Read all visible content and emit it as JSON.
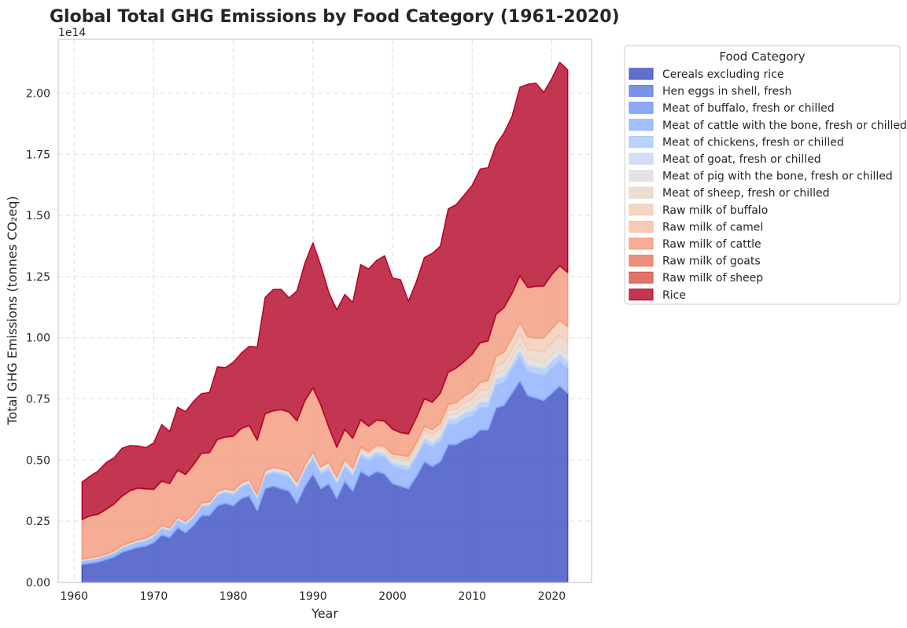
{
  "chart_data": {
    "type": "area",
    "stacked": true,
    "title": "Global Total GHG Emissions by Food Category (1961-2020)",
    "xlabel": "Year",
    "ylabel": "Total GHG Emissions (tonnes CO₂eq)",
    "y_offset_label": "1e14",
    "xlim": [
      1958,
      2025
    ],
    "ylim": [
      0,
      2.22
    ],
    "xticks": [
      1960,
      1970,
      1980,
      1990,
      2000,
      2010,
      2020
    ],
    "yticks": [
      0,
      0.25,
      0.5,
      0.75,
      1.0,
      1.25,
      1.5,
      1.75,
      2.0
    ],
    "ytick_labels": [
      "0.00",
      "0.25",
      "0.50",
      "0.75",
      "1.00",
      "1.25",
      "1.50",
      "1.75",
      "2.00"
    ],
    "grid": true,
    "legend_title": "Food Category",
    "legend_position": "outside-right-top",
    "x": [
      1961,
      1962,
      1963,
      1964,
      1965,
      1966,
      1967,
      1968,
      1969,
      1970,
      1971,
      1972,
      1973,
      1974,
      1975,
      1976,
      1977,
      1978,
      1979,
      1980,
      1981,
      1982,
      1983,
      1984,
      1985,
      1986,
      1987,
      1988,
      1989,
      1990,
      1991,
      1992,
      1993,
      1994,
      1995,
      1996,
      1997,
      1998,
      1999,
      2000,
      2001,
      2002,
      2003,
      2004,
      2005,
      2006,
      2007,
      2008,
      2009,
      2010,
      2011,
      2012,
      2013,
      2014,
      2015,
      2016,
      2017,
      2018,
      2019,
      2020,
      2021,
      2022
    ],
    "series": [
      {
        "name": "Cereals excluding rice",
        "color": "#3b4cc0",
        "values": [
          0.07,
          0.075,
          0.08,
          0.09,
          0.1,
          0.12,
          0.13,
          0.14,
          0.145,
          0.16,
          0.19,
          0.18,
          0.22,
          0.2,
          0.23,
          0.27,
          0.27,
          0.31,
          0.32,
          0.31,
          0.34,
          0.35,
          0.29,
          0.38,
          0.39,
          0.38,
          0.37,
          0.32,
          0.39,
          0.44,
          0.38,
          0.4,
          0.34,
          0.41,
          0.37,
          0.45,
          0.43,
          0.45,
          0.44,
          0.4,
          0.39,
          0.38,
          0.43,
          0.49,
          0.47,
          0.49,
          0.56,
          0.56,
          0.58,
          0.59,
          0.62,
          0.62,
          0.71,
          0.72,
          0.77,
          0.82,
          0.76,
          0.75,
          0.74,
          0.77,
          0.8,
          0.77
        ]
      },
      {
        "name": "Hen eggs in shell, fresh",
        "color": "#5977e3",
        "values": [
          0.003,
          0.003,
          0.003,
          0.003,
          0.003,
          0.003,
          0.003,
          0.003,
          0.003,
          0.003,
          0.003,
          0.003,
          0.003,
          0.003,
          0.003,
          0.003,
          0.003,
          0.003,
          0.003,
          0.003,
          0.003,
          0.003,
          0.003,
          0.003,
          0.003,
          0.003,
          0.003,
          0.003,
          0.003,
          0.003,
          0.003,
          0.003,
          0.003,
          0.003,
          0.003,
          0.003,
          0.003,
          0.003,
          0.003,
          0.003,
          0.003,
          0.003,
          0.003,
          0.003,
          0.003,
          0.003,
          0.003,
          0.003,
          0.003,
          0.003,
          0.003,
          0.003,
          0.003,
          0.003,
          0.003,
          0.003,
          0.003,
          0.003,
          0.003,
          0.003,
          0.003,
          0.003
        ]
      },
      {
        "name": "Meat of buffalo, fresh or chilled",
        "color": "#6f92f3",
        "values": [
          0.002,
          0.002,
          0.002,
          0.002,
          0.002,
          0.002,
          0.002,
          0.002,
          0.002,
          0.002,
          0.002,
          0.002,
          0.002,
          0.002,
          0.002,
          0.002,
          0.002,
          0.002,
          0.002,
          0.002,
          0.002,
          0.002,
          0.002,
          0.002,
          0.002,
          0.002,
          0.002,
          0.002,
          0.002,
          0.002,
          0.002,
          0.002,
          0.002,
          0.002,
          0.002,
          0.002,
          0.002,
          0.002,
          0.002,
          0.002,
          0.002,
          0.002,
          0.002,
          0.002,
          0.002,
          0.002,
          0.002,
          0.002,
          0.002,
          0.002,
          0.002,
          0.002,
          0.002,
          0.002,
          0.002,
          0.002,
          0.002,
          0.002,
          0.002,
          0.002,
          0.002,
          0.002
        ]
      },
      {
        "name": "Meat of cattle with the bone, fresh or chilled",
        "color": "#8caffe",
        "values": [
          0.012,
          0.012,
          0.013,
          0.013,
          0.014,
          0.015,
          0.017,
          0.018,
          0.02,
          0.021,
          0.025,
          0.025,
          0.028,
          0.03,
          0.03,
          0.035,
          0.037,
          0.04,
          0.04,
          0.042,
          0.043,
          0.045,
          0.045,
          0.05,
          0.052,
          0.055,
          0.055,
          0.058,
          0.06,
          0.06,
          0.058,
          0.056,
          0.055,
          0.056,
          0.058,
          0.06,
          0.062,
          0.064,
          0.066,
          0.068,
          0.07,
          0.072,
          0.074,
          0.076,
          0.078,
          0.08,
          0.08,
          0.082,
          0.084,
          0.086,
          0.088,
          0.09,
          0.09,
          0.092,
          0.094,
          0.096,
          0.096,
          0.098,
          0.1,
          0.1,
          0.1,
          0.1
        ]
      },
      {
        "name": "Meat of chickens, fresh or chilled",
        "color": "#aac7fd",
        "values": [
          0.002,
          0.002,
          0.002,
          0.002,
          0.002,
          0.003,
          0.003,
          0.003,
          0.003,
          0.004,
          0.004,
          0.004,
          0.005,
          0.005,
          0.005,
          0.006,
          0.006,
          0.007,
          0.007,
          0.007,
          0.008,
          0.008,
          0.008,
          0.009,
          0.009,
          0.01,
          0.01,
          0.01,
          0.011,
          0.011,
          0.011,
          0.012,
          0.012,
          0.012,
          0.013,
          0.013,
          0.014,
          0.014,
          0.015,
          0.015,
          0.016,
          0.016,
          0.017,
          0.018,
          0.018,
          0.019,
          0.02,
          0.02,
          0.021,
          0.022,
          0.022,
          0.023,
          0.024,
          0.025,
          0.025,
          0.026,
          0.026,
          0.027,
          0.027,
          0.028,
          0.028,
          0.028
        ]
      },
      {
        "name": "Meat of goat, fresh or chilled",
        "color": "#c5d6f2",
        "values": [
          0.001,
          0.001,
          0.001,
          0.001,
          0.001,
          0.001,
          0.001,
          0.001,
          0.001,
          0.001,
          0.001,
          0.001,
          0.001,
          0.001,
          0.001,
          0.001,
          0.001,
          0.001,
          0.001,
          0.001,
          0.001,
          0.001,
          0.001,
          0.001,
          0.001,
          0.001,
          0.001,
          0.001,
          0.001,
          0.001,
          0.001,
          0.001,
          0.001,
          0.001,
          0.001,
          0.001,
          0.001,
          0.001,
          0.001,
          0.002,
          0.002,
          0.002,
          0.002,
          0.002,
          0.002,
          0.002,
          0.002,
          0.002,
          0.002,
          0.002,
          0.002,
          0.002,
          0.002,
          0.002,
          0.002,
          0.002,
          0.002,
          0.002,
          0.002,
          0.002,
          0.002,
          0.002
        ]
      },
      {
        "name": "Meat of pig with the bone, fresh or chilled",
        "color": "#dddcdc",
        "values": [
          0.003,
          0.003,
          0.003,
          0.003,
          0.004,
          0.004,
          0.004,
          0.004,
          0.004,
          0.005,
          0.005,
          0.005,
          0.005,
          0.006,
          0.006,
          0.006,
          0.007,
          0.007,
          0.007,
          0.008,
          0.008,
          0.008,
          0.008,
          0.009,
          0.009,
          0.01,
          0.01,
          0.011,
          0.011,
          0.011,
          0.012,
          0.012,
          0.012,
          0.013,
          0.013,
          0.014,
          0.014,
          0.015,
          0.015,
          0.016,
          0.016,
          0.017,
          0.017,
          0.018,
          0.018,
          0.019,
          0.019,
          0.02,
          0.02,
          0.021,
          0.021,
          0.022,
          0.022,
          0.023,
          0.023,
          0.024,
          0.024,
          0.024,
          0.025,
          0.025,
          0.025,
          0.025
        ]
      },
      {
        "name": "Meat of sheep, fresh or chilled",
        "color": "#ead4c8",
        "values": [
          0.001,
          0.001,
          0.001,
          0.001,
          0.001,
          0.001,
          0.001,
          0.001,
          0.001,
          0.001,
          0.001,
          0.001,
          0.001,
          0.001,
          0.001,
          0.001,
          0.001,
          0.001,
          0.001,
          0.001,
          0.001,
          0.001,
          0.001,
          0.002,
          0.002,
          0.002,
          0.002,
          0.002,
          0.002,
          0.003,
          0.003,
          0.003,
          0.003,
          0.004,
          0.004,
          0.005,
          0.005,
          0.006,
          0.007,
          0.008,
          0.009,
          0.01,
          0.012,
          0.013,
          0.015,
          0.016,
          0.018,
          0.02,
          0.022,
          0.024,
          0.026,
          0.028,
          0.03,
          0.032,
          0.035,
          0.04,
          0.04,
          0.042,
          0.045,
          0.048,
          0.05,
          0.05
        ]
      },
      {
        "name": "Raw milk of buffalo",
        "color": "#f2cab5",
        "values": [
          0.001,
          0.001,
          0.001,
          0.001,
          0.001,
          0.001,
          0.001,
          0.001,
          0.001,
          0.001,
          0.001,
          0.001,
          0.001,
          0.001,
          0.001,
          0.001,
          0.001,
          0.001,
          0.001,
          0.001,
          0.001,
          0.001,
          0.001,
          0.001,
          0.001,
          0.001,
          0.001,
          0.001,
          0.001,
          0.002,
          0.002,
          0.002,
          0.002,
          0.002,
          0.003,
          0.004,
          0.005,
          0.006,
          0.008,
          0.01,
          0.012,
          0.013,
          0.015,
          0.016,
          0.018,
          0.02,
          0.023,
          0.025,
          0.027,
          0.03,
          0.033,
          0.035,
          0.04,
          0.042,
          0.045,
          0.048,
          0.05,
          0.05,
          0.055,
          0.058,
          0.062,
          0.065
        ]
      },
      {
        "name": "Raw milk of camel",
        "color": "#f6bda2",
        "values": [
          0.001,
          0.001,
          0.001,
          0.001,
          0.001,
          0.001,
          0.001,
          0.001,
          0.001,
          0.001,
          0.001,
          0.001,
          0.001,
          0.001,
          0.001,
          0.001,
          0.001,
          0.001,
          0.001,
          0.001,
          0.001,
          0.001,
          0.001,
          0.001,
          0.001,
          0.001,
          0.001,
          0.001,
          0.001,
          0.001,
          0.001,
          0.001,
          0.001,
          0.001,
          0.001,
          0.001,
          0.001,
          0.001,
          0.001,
          0.001,
          0.001,
          0.001,
          0.001,
          0.001,
          0.001,
          0.001,
          0.001,
          0.001,
          0.001,
          0.001,
          0.001,
          0.001,
          0.001,
          0.001,
          0.001,
          0.001,
          0.001,
          0.001,
          0.001,
          0.001,
          0.001,
          0.001
        ]
      },
      {
        "name": "Raw milk of cattle",
        "color": "#f4987a",
        "values": [
          0.16,
          0.17,
          0.17,
          0.18,
          0.19,
          0.2,
          0.21,
          0.21,
          0.2,
          0.18,
          0.18,
          0.18,
          0.19,
          0.19,
          0.2,
          0.2,
          0.2,
          0.21,
          0.21,
          0.22,
          0.22,
          0.22,
          0.22,
          0.23,
          0.23,
          0.24,
          0.24,
          0.25,
          0.26,
          0.26,
          0.25,
          0.14,
          0.12,
          0.12,
          0.12,
          0.11,
          0.1,
          0.1,
          0.1,
          0.1,
          0.09,
          0.09,
          0.1,
          0.11,
          0.11,
          0.12,
          0.13,
          0.14,
          0.14,
          0.15,
          0.16,
          0.16,
          0.17,
          0.18,
          0.18,
          0.19,
          0.2,
          0.21,
          0.21,
          0.22,
          0.22,
          0.22
        ]
      },
      {
        "name": "Raw milk of goats",
        "color": "#e7745b",
        "values": [
          0.001,
          0.001,
          0.001,
          0.001,
          0.001,
          0.001,
          0.001,
          0.001,
          0.001,
          0.001,
          0.001,
          0.001,
          0.001,
          0.001,
          0.001,
          0.001,
          0.001,
          0.001,
          0.001,
          0.001,
          0.001,
          0.001,
          0.001,
          0.001,
          0.001,
          0.001,
          0.001,
          0.001,
          0.001,
          0.001,
          0.001,
          0.001,
          0.001,
          0.001,
          0.001,
          0.001,
          0.001,
          0.001,
          0.001,
          0.001,
          0.001,
          0.001,
          0.001,
          0.001,
          0.001,
          0.001,
          0.001,
          0.001,
          0.001,
          0.001,
          0.001,
          0.001,
          0.001,
          0.001,
          0.001,
          0.001,
          0.001,
          0.001,
          0.001,
          0.001,
          0.001,
          0.001
        ]
      },
      {
        "name": "Raw milk of sheep",
        "color": "#d65244",
        "values": [
          0.001,
          0.001,
          0.001,
          0.001,
          0.001,
          0.001,
          0.001,
          0.001,
          0.001,
          0.001,
          0.001,
          0.001,
          0.001,
          0.001,
          0.001,
          0.001,
          0.001,
          0.001,
          0.001,
          0.001,
          0.001,
          0.001,
          0.001,
          0.001,
          0.001,
          0.001,
          0.001,
          0.001,
          0.001,
          0.001,
          0.001,
          0.001,
          0.001,
          0.001,
          0.001,
          0.001,
          0.001,
          0.001,
          0.001,
          0.001,
          0.001,
          0.001,
          0.001,
          0.001,
          0.001,
          0.001,
          0.001,
          0.001,
          0.001,
          0.001,
          0.001,
          0.001,
          0.001,
          0.001,
          0.001,
          0.001,
          0.001,
          0.001,
          0.001,
          0.001,
          0.001,
          0.001
        ]
      },
      {
        "name": "Rice",
        "color": "#b40426",
        "values": [
          0.152,
          0.161,
          0.176,
          0.19,
          0.188,
          0.195,
          0.184,
          0.172,
          0.168,
          0.189,
          0.23,
          0.212,
          0.257,
          0.256,
          0.258,
          0.244,
          0.245,
          0.296,
          0.283,
          0.302,
          0.307,
          0.323,
          0.38,
          0.475,
          0.495,
          0.491,
          0.466,
          0.531,
          0.562,
          0.592,
          0.569,
          0.551,
          0.561,
          0.551,
          0.554,
          0.634,
          0.642,
          0.652,
          0.675,
          0.617,
          0.624,
          0.541,
          0.555,
          0.577,
          0.608,
          0.6,
          0.667,
          0.667,
          0.679,
          0.69,
          0.709,
          0.707,
          0.693,
          0.713,
          0.722,
          0.77,
          0.83,
          0.83,
          0.791,
          0.8,
          0.831,
          0.827
        ]
      }
    ]
  }
}
